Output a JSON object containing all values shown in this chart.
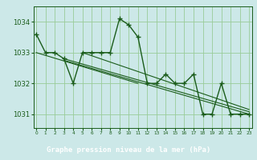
{
  "title": "Graphe pression niveau de la mer (hPa)",
  "x_values": [
    0,
    1,
    2,
    3,
    4,
    5,
    6,
    7,
    8,
    9,
    10,
    11,
    12,
    13,
    14,
    15,
    16,
    17,
    18,
    19,
    20,
    21,
    22,
    23
  ],
  "y_main": [
    1033.6,
    1033.0,
    1033.0,
    1032.8,
    1032.0,
    1033.0,
    1033.0,
    1033.0,
    1033.0,
    1034.1,
    1033.9,
    1033.5,
    1032.0,
    1032.0,
    1032.3,
    1032.0,
    1032.0,
    1032.3,
    1031.0,
    1031.0,
    1032.0,
    1031.0,
    1031.0,
    1031.0
  ],
  "line1_x": [
    0,
    11
  ],
  "line1_y": [
    1033.0,
    1032.0
  ],
  "line2_x": [
    3,
    23
  ],
  "line2_y": [
    1032.75,
    1031.0
  ],
  "line3_x": [
    3,
    23
  ],
  "line3_y": [
    1032.8,
    1031.08
  ],
  "line4_x": [
    5,
    23
  ],
  "line4_y": [
    1033.0,
    1031.15
  ],
  "ylim_min": 1030.55,
  "ylim_max": 1034.5,
  "xlim_min": -0.3,
  "xlim_max": 23.3,
  "bg_color": "#cce8e8",
  "line_color": "#1a5c1a",
  "grid_color": "#99cc99",
  "label_color": "#1a5c1a",
  "title_bg": "#2a6e2a",
  "title_fg": "#ffffff",
  "yticks": [
    1031,
    1032,
    1033,
    1034
  ]
}
